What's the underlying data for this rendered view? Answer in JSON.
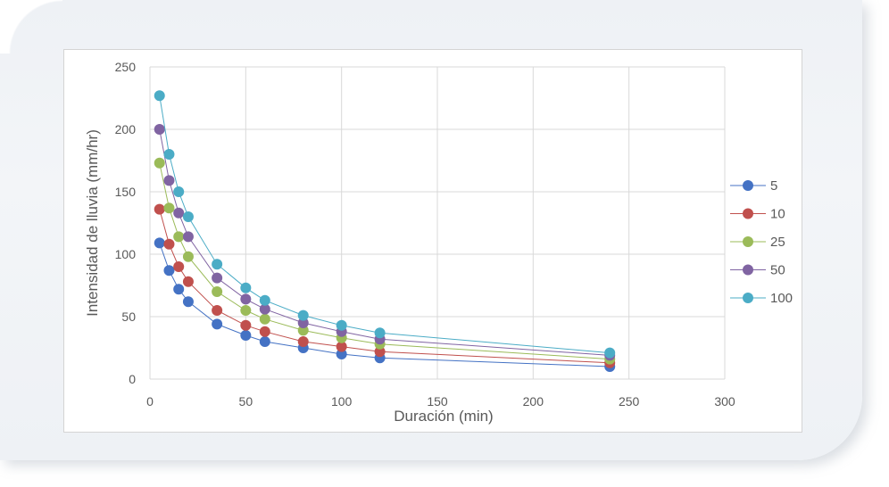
{
  "chart_data": {
    "type": "line",
    "title": "",
    "xlabel": "Duración (min)",
    "ylabel": "Intensidad de lluvia (mm/hr)",
    "xlim": [
      0,
      300
    ],
    "ylim": [
      0,
      250
    ],
    "xticks": [
      0,
      50,
      100,
      150,
      200,
      250,
      300
    ],
    "yticks": [
      0,
      50,
      100,
      150,
      200,
      250
    ],
    "grid": true,
    "legend_position": "right",
    "x": [
      5,
      10,
      15,
      20,
      35,
      50,
      60,
      80,
      100,
      120,
      240
    ],
    "series": [
      {
        "name": "5",
        "color": "#4472c4",
        "values": [
          109,
          87,
          72,
          62,
          44,
          35,
          30,
          25,
          20,
          17,
          10
        ]
      },
      {
        "name": "10",
        "color": "#c0504d",
        "values": [
          136,
          108,
          90,
          78,
          55,
          43,
          38,
          30,
          26,
          22,
          13
        ]
      },
      {
        "name": "25",
        "color": "#9bbb59",
        "values": [
          173,
          137,
          114,
          98,
          70,
          55,
          48,
          39,
          33,
          28,
          16
        ]
      },
      {
        "name": "50",
        "color": "#8064a2",
        "values": [
          200,
          159,
          133,
          114,
          81,
          64,
          56,
          45,
          38,
          32,
          19
        ]
      },
      {
        "name": "100",
        "color": "#4bacc6",
        "values": [
          227,
          180,
          150,
          130,
          92,
          73,
          63,
          51,
          43,
          37,
          21
        ]
      }
    ]
  }
}
